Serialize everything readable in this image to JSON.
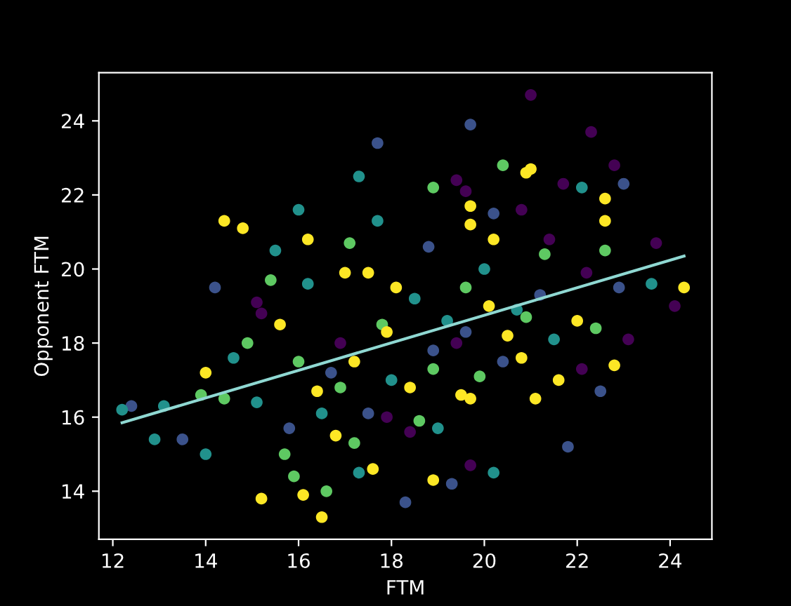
{
  "chart_data": {
    "type": "scatter",
    "xlabel": "FTM",
    "ylabel": "Opponent FTM",
    "xlim": [
      11.7,
      24.9
    ],
    "ylim": [
      12.7,
      25.3
    ],
    "xticks": [
      12,
      14,
      16,
      18,
      20,
      22,
      24
    ],
    "yticks": [
      14,
      16,
      18,
      20,
      22,
      24
    ],
    "grid": false,
    "legend": false,
    "marker": "circle",
    "series": [
      {
        "color": "#440154",
        "x": [
          21.0,
          22.3,
          19.6,
          19.4,
          21.7,
          22.8,
          23.7,
          24.1,
          15.1,
          15.2,
          18.4,
          17.9,
          19.7,
          21.4,
          20.8,
          22.2,
          22.1,
          19.4,
          16.9,
          23.1
        ],
        "values": [
          24.7,
          23.7,
          22.1,
          22.4,
          22.3,
          22.8,
          20.7,
          19.0,
          19.1,
          18.8,
          15.6,
          16.0,
          14.7,
          20.8,
          21.6,
          19.9,
          17.3,
          18.0,
          18.0,
          18.1
        ]
      },
      {
        "color": "#3b528b",
        "x": [
          19.7,
          17.7,
          13.5,
          12.4,
          18.3,
          19.3,
          14.2,
          20.2,
          21.8,
          23.0,
          22.5,
          21.2,
          18.9,
          16.7,
          20.4,
          15.8,
          22.9,
          17.5,
          19.6,
          18.8
        ],
        "values": [
          23.9,
          23.4,
          15.4,
          16.3,
          13.7,
          14.2,
          19.5,
          21.5,
          15.2,
          22.3,
          16.7,
          19.3,
          17.8,
          17.2,
          17.5,
          15.7,
          19.5,
          16.1,
          18.3,
          20.6
        ]
      },
      {
        "color": "#21918c",
        "x": [
          17.3,
          16.0,
          15.5,
          12.2,
          12.9,
          14.0,
          20.2,
          22.1,
          23.6,
          20.0,
          17.7,
          16.2,
          19.2,
          18.0,
          16.5,
          21.5,
          14.6,
          15.1,
          17.3,
          19.0,
          20.7,
          18.5,
          13.1
        ],
        "values": [
          22.5,
          21.6,
          20.5,
          16.2,
          15.4,
          15.0,
          14.5,
          22.2,
          19.6,
          20.0,
          21.3,
          19.6,
          18.6,
          17.0,
          16.1,
          18.1,
          17.6,
          16.4,
          14.5,
          15.7,
          18.9,
          19.2,
          16.3
        ]
      },
      {
        "color": "#5ec962",
        "x": [
          18.9,
          20.4,
          15.9,
          16.6,
          22.6,
          13.9,
          14.4,
          17.1,
          15.4,
          17.8,
          18.9,
          16.9,
          19.6,
          20.9,
          17.2,
          14.9,
          16.0,
          21.3,
          18.6,
          19.9,
          22.4,
          15.7
        ],
        "values": [
          22.2,
          22.8,
          14.4,
          14.0,
          20.5,
          16.6,
          16.5,
          20.7,
          19.7,
          18.5,
          17.3,
          16.8,
          19.5,
          18.7,
          15.3,
          18.0,
          17.5,
          20.4,
          15.9,
          17.1,
          18.4,
          15.0
        ]
      },
      {
        "color": "#fde725",
        "x": [
          14.4,
          14.8,
          21.0,
          20.9,
          22.6,
          22.6,
          19.7,
          19.7,
          24.3,
          22.8,
          16.1,
          16.5,
          15.2,
          18.9,
          21.1,
          21.6,
          16.2,
          17.0,
          17.5,
          20.2,
          15.6,
          17.2,
          18.4,
          19.5,
          20.1,
          20.5,
          22.0,
          18.1,
          16.8,
          17.6,
          14.0,
          19.7,
          17.9,
          16.4,
          20.8
        ],
        "values": [
          21.3,
          21.1,
          22.7,
          22.6,
          21.9,
          21.3,
          21.7,
          21.2,
          19.5,
          17.4,
          13.9,
          13.3,
          13.8,
          14.3,
          16.5,
          17.0,
          20.8,
          19.9,
          19.9,
          20.8,
          18.5,
          17.5,
          16.8,
          16.6,
          19.0,
          18.2,
          18.6,
          19.5,
          15.5,
          14.6,
          17.2,
          16.5,
          18.3,
          16.7,
          17.6
        ]
      },
      {
        "type": "line",
        "marker": "none",
        "color": "#8fd8d2",
        "x": [
          12.2,
          24.3
        ],
        "values": [
          15.85,
          20.35
        ]
      }
    ]
  }
}
